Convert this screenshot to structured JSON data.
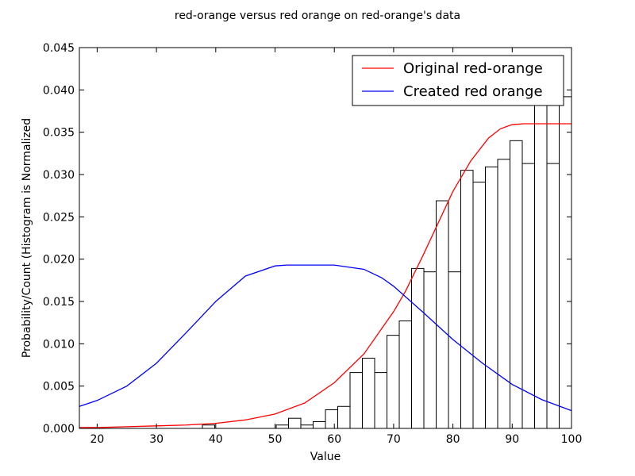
{
  "chart_data": {
    "type": "histogram_with_lines",
    "title": "red-orange versus red orange on red-orange's data",
    "xlabel": "Value",
    "ylabel": "Probability/Count (Histogram is Normalized",
    "xlim": [
      17,
      100
    ],
    "ylim": [
      0,
      0.045
    ],
    "xticks": [
      "20",
      "30",
      "40",
      "50",
      "60",
      "70",
      "80",
      "90",
      "100"
    ],
    "xtick_values": [
      20,
      30,
      40,
      50,
      60,
      70,
      80,
      90,
      100
    ],
    "yticks": [
      "0.000",
      "0.005",
      "0.010",
      "0.015",
      "0.020",
      "0.025",
      "0.030",
      "0.035",
      "0.040",
      "0.045"
    ],
    "ytick_values": [
      0,
      0.005,
      0.01,
      0.015,
      0.02,
      0.025,
      0.03,
      0.035,
      0.04,
      0.045
    ],
    "legend_placement": "top-right",
    "histogram": {
      "bin_start": 17,
      "bin_width": 2.075,
      "values": [
        0,
        0,
        0,
        0,
        0,
        0,
        0,
        0,
        0,
        0,
        0.0004,
        0,
        0,
        0,
        0,
        0,
        0.0004,
        0.0012,
        0.0004,
        0.0008,
        0.0022,
        0.0026,
        0.0066,
        0.0083,
        0.0066,
        0.011,
        0.0127,
        0.0189,
        0.0185,
        0.0269,
        0.0185,
        0.0305,
        0.0291,
        0.0309,
        0.0318,
        0.034,
        0.0313,
        0.0392,
        0.0313,
        0.0392
      ]
    },
    "series": [
      {
        "name": "Original red-orange",
        "color": "#ff0000",
        "x": [
          17,
          20,
          25,
          30,
          35,
          40,
          45,
          50,
          55,
          60,
          65,
          70,
          72,
          75,
          78,
          80,
          83,
          86,
          88,
          90,
          92,
          95,
          100
        ],
        "y": [
          0.0001,
          0.0001,
          0.0002,
          0.0003,
          0.0004,
          0.0006,
          0.001,
          0.0017,
          0.003,
          0.0054,
          0.0088,
          0.0138,
          0.0162,
          0.0205,
          0.025,
          0.028,
          0.0316,
          0.0343,
          0.0354,
          0.0359,
          0.036,
          0.036,
          0.036
        ]
      },
      {
        "name": "Created red orange",
        "color": "#0000ff",
        "x": [
          17,
          20,
          25,
          30,
          35,
          40,
          45,
          50,
          52,
          55,
          60,
          65,
          68,
          70,
          75,
          80,
          85,
          90,
          95,
          100
        ],
        "y": [
          0.0026,
          0.0033,
          0.005,
          0.0077,
          0.0113,
          0.015,
          0.018,
          0.0192,
          0.0193,
          0.0193,
          0.0193,
          0.0188,
          0.0178,
          0.0168,
          0.0137,
          0.0105,
          0.0077,
          0.0052,
          0.0034,
          0.0021
        ]
      }
    ]
  }
}
